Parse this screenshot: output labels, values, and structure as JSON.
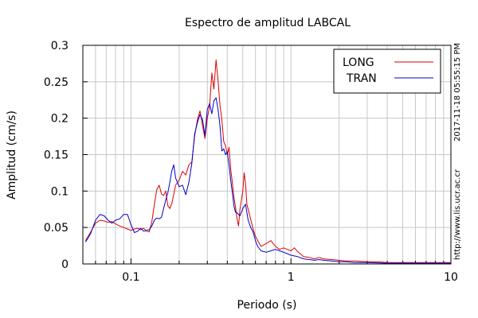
{
  "chart_data": {
    "type": "line",
    "title": "Espectro de amplitud LABCAL",
    "xlabel": "Periodo (s)",
    "ylabel": "Amplitud (cm/s)",
    "x_scale": "log",
    "xlim": [
      0.05,
      10
    ],
    "ylim": [
      0,
      0.3
    ],
    "grid": true,
    "legend_position": "top-right",
    "x_ticks": [
      {
        "value": 0.1,
        "label": "0.1"
      },
      {
        "value": 1,
        "label": "1"
      },
      {
        "value": 10,
        "label": "10"
      }
    ],
    "y_ticks": [
      {
        "value": 0,
        "label": "0"
      },
      {
        "value": 0.05,
        "label": "0.05"
      },
      {
        "value": 0.1,
        "label": "0.1"
      },
      {
        "value": 0.15,
        "label": "0.15"
      },
      {
        "value": 0.2,
        "label": "0.2"
      },
      {
        "value": 0.25,
        "label": "0.25"
      },
      {
        "value": 0.3,
        "label": "0.3"
      }
    ],
    "series": [
      {
        "name": "LONG",
        "color": "#dd0000",
        "points": [
          [
            0.052,
            0.032
          ],
          [
            0.056,
            0.044
          ],
          [
            0.06,
            0.056
          ],
          [
            0.064,
            0.06
          ],
          [
            0.068,
            0.059
          ],
          [
            0.072,
            0.057
          ],
          [
            0.076,
            0.058
          ],
          [
            0.08,
            0.055
          ],
          [
            0.085,
            0.052
          ],
          [
            0.09,
            0.05
          ],
          [
            0.095,
            0.048
          ],
          [
            0.1,
            0.046
          ],
          [
            0.105,
            0.048
          ],
          [
            0.11,
            0.049
          ],
          [
            0.115,
            0.047
          ],
          [
            0.12,
            0.049
          ],
          [
            0.125,
            0.045
          ],
          [
            0.13,
            0.044
          ],
          [
            0.135,
            0.058
          ],
          [
            0.14,
            0.082
          ],
          [
            0.145,
            0.102
          ],
          [
            0.15,
            0.108
          ],
          [
            0.155,
            0.096
          ],
          [
            0.16,
            0.094
          ],
          [
            0.165,
            0.1
          ],
          [
            0.17,
            0.08
          ],
          [
            0.175,
            0.076
          ],
          [
            0.18,
            0.083
          ],
          [
            0.19,
            0.108
          ],
          [
            0.2,
            0.115
          ],
          [
            0.21,
            0.127
          ],
          [
            0.22,
            0.122
          ],
          [
            0.23,
            0.136
          ],
          [
            0.24,
            0.14
          ],
          [
            0.25,
            0.175
          ],
          [
            0.26,
            0.198
          ],
          [
            0.27,
            0.21
          ],
          [
            0.28,
            0.19
          ],
          [
            0.29,
            0.172
          ],
          [
            0.3,
            0.2
          ],
          [
            0.31,
            0.216
          ],
          [
            0.32,
            0.262
          ],
          [
            0.33,
            0.24
          ],
          [
            0.34,
            0.28
          ],
          [
            0.35,
            0.252
          ],
          [
            0.36,
            0.218
          ],
          [
            0.37,
            0.198
          ],
          [
            0.38,
            0.168
          ],
          [
            0.39,
            0.162
          ],
          [
            0.4,
            0.15
          ],
          [
            0.41,
            0.16
          ],
          [
            0.42,
            0.13
          ],
          [
            0.43,
            0.112
          ],
          [
            0.44,
            0.092
          ],
          [
            0.45,
            0.078
          ],
          [
            0.46,
            0.062
          ],
          [
            0.47,
            0.052
          ],
          [
            0.48,
            0.075
          ],
          [
            0.5,
            0.1
          ],
          [
            0.51,
            0.125
          ],
          [
            0.52,
            0.11
          ],
          [
            0.53,
            0.082
          ],
          [
            0.55,
            0.068
          ],
          [
            0.58,
            0.048
          ],
          [
            0.6,
            0.038
          ],
          [
            0.62,
            0.032
          ],
          [
            0.65,
            0.024
          ],
          [
            0.7,
            0.028
          ],
          [
            0.75,
            0.032
          ],
          [
            0.8,
            0.024
          ],
          [
            0.85,
            0.02
          ],
          [
            0.9,
            0.022
          ],
          [
            0.95,
            0.02
          ],
          [
            1.0,
            0.018
          ],
          [
            1.05,
            0.022
          ],
          [
            1.1,
            0.017
          ],
          [
            1.2,
            0.01
          ],
          [
            1.3,
            0.009
          ],
          [
            1.4,
            0.007
          ],
          [
            1.5,
            0.009
          ],
          [
            1.6,
            0.007
          ],
          [
            1.8,
            0.006
          ],
          [
            2.0,
            0.005
          ],
          [
            2.2,
            0.004
          ],
          [
            2.5,
            0.004
          ],
          [
            3.0,
            0.003
          ],
          [
            3.5,
            0.003
          ],
          [
            4.0,
            0.002
          ],
          [
            5.0,
            0.002
          ],
          [
            6.0,
            0.002
          ],
          [
            7.0,
            0.002
          ],
          [
            8.0,
            0.002
          ],
          [
            9.0,
            0.002
          ],
          [
            10.0,
            0.002
          ]
        ]
      },
      {
        "name": "TRAN",
        "color": "#0000cc",
        "points": [
          [
            0.052,
            0.03
          ],
          [
            0.056,
            0.042
          ],
          [
            0.06,
            0.06
          ],
          [
            0.064,
            0.068
          ],
          [
            0.068,
            0.066
          ],
          [
            0.072,
            0.06
          ],
          [
            0.076,
            0.056
          ],
          [
            0.08,
            0.06
          ],
          [
            0.085,
            0.062
          ],
          [
            0.09,
            0.068
          ],
          [
            0.095,
            0.068
          ],
          [
            0.1,
            0.054
          ],
          [
            0.105,
            0.043
          ],
          [
            0.11,
            0.045
          ],
          [
            0.115,
            0.049
          ],
          [
            0.12,
            0.045
          ],
          [
            0.125,
            0.046
          ],
          [
            0.13,
            0.047
          ],
          [
            0.135,
            0.052
          ],
          [
            0.14,
            0.06
          ],
          [
            0.145,
            0.063
          ],
          [
            0.15,
            0.062
          ],
          [
            0.155,
            0.064
          ],
          [
            0.16,
            0.076
          ],
          [
            0.165,
            0.088
          ],
          [
            0.17,
            0.098
          ],
          [
            0.175,
            0.112
          ],
          [
            0.18,
            0.128
          ],
          [
            0.185,
            0.136
          ],
          [
            0.19,
            0.118
          ],
          [
            0.2,
            0.106
          ],
          [
            0.21,
            0.108
          ],
          [
            0.22,
            0.095
          ],
          [
            0.23,
            0.112
          ],
          [
            0.24,
            0.138
          ],
          [
            0.25,
            0.178
          ],
          [
            0.26,
            0.194
          ],
          [
            0.27,
            0.205
          ],
          [
            0.28,
            0.198
          ],
          [
            0.29,
            0.176
          ],
          [
            0.3,
            0.212
          ],
          [
            0.31,
            0.22
          ],
          [
            0.32,
            0.206
          ],
          [
            0.33,
            0.224
          ],
          [
            0.34,
            0.228
          ],
          [
            0.35,
            0.212
          ],
          [
            0.36,
            0.19
          ],
          [
            0.37,
            0.155
          ],
          [
            0.38,
            0.158
          ],
          [
            0.39,
            0.15
          ],
          [
            0.4,
            0.154
          ],
          [
            0.41,
            0.135
          ],
          [
            0.42,
            0.115
          ],
          [
            0.43,
            0.098
          ],
          [
            0.44,
            0.08
          ],
          [
            0.45,
            0.071
          ],
          [
            0.46,
            0.07
          ],
          [
            0.48,
            0.066
          ],
          [
            0.5,
            0.076
          ],
          [
            0.52,
            0.082
          ],
          [
            0.54,
            0.06
          ],
          [
            0.56,
            0.05
          ],
          [
            0.58,
            0.044
          ],
          [
            0.6,
            0.032
          ],
          [
            0.62,
            0.024
          ],
          [
            0.65,
            0.018
          ],
          [
            0.7,
            0.016
          ],
          [
            0.75,
            0.018
          ],
          [
            0.8,
            0.02
          ],
          [
            0.85,
            0.018
          ],
          [
            0.9,
            0.016
          ],
          [
            1.0,
            0.012
          ],
          [
            1.1,
            0.01
          ],
          [
            1.2,
            0.007
          ],
          [
            1.3,
            0.006
          ],
          [
            1.4,
            0.005
          ],
          [
            1.5,
            0.006
          ],
          [
            1.6,
            0.005
          ],
          [
            1.8,
            0.004
          ],
          [
            2.0,
            0.003
          ],
          [
            2.2,
            0.003
          ],
          [
            2.5,
            0.002
          ],
          [
            3.0,
            0.002
          ],
          [
            4.0,
            0.001
          ],
          [
            5.0,
            0.001
          ],
          [
            6.0,
            0.001
          ],
          [
            7.0,
            0.001
          ],
          [
            8.0,
            0.001
          ],
          [
            9.0,
            0.001
          ],
          [
            10.0,
            0.001
          ]
        ]
      }
    ]
  },
  "side_text": {
    "url": "http://www.lis.ucr.ac.cr",
    "timestamp": "2017-11-18 05:55:15 PM"
  }
}
